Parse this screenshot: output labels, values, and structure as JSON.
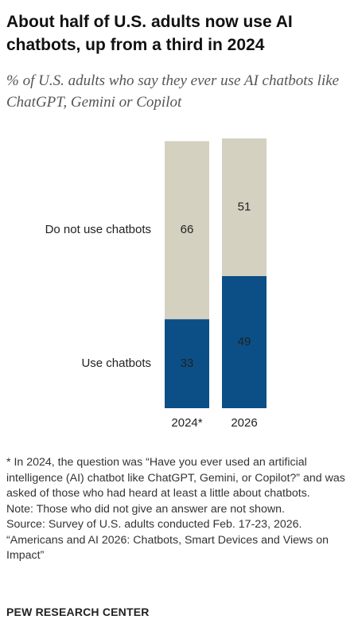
{
  "chart_data": {
    "type": "stacked-bar",
    "title": "About half of U.S. adults now use AI chatbots, up from a third in 2024",
    "subtitle": "% of U.S. adults who say they ever use AI chatbots like ChatGPT, Gemini or Copilot",
    "categories": [
      "2024*",
      "2026"
    ],
    "series": [
      {
        "name": "Use chatbots",
        "color": "#0b4f86",
        "values": [
          33,
          49
        ]
      },
      {
        "name": "Do not use chatbots",
        "color": "#d4d1c1",
        "values": [
          66,
          51
        ]
      }
    ],
    "notes": [
      "* In 2024, the question was “Have you ever used an artificial intelligence (AI) chatbot like ChatGPT, Gemini, or Copilot?” and was asked of those who had heard at least a little about chatbots.",
      "Note: Those who did not give an answer are not shown.",
      "Source: Survey of U.S. adults conducted Feb. 17-23, 2026.",
      "“Americans and AI 2026: Chatbots, Smart Devices and Views on Impact”"
    ],
    "footer": "PEW RESEARCH CENTER"
  }
}
